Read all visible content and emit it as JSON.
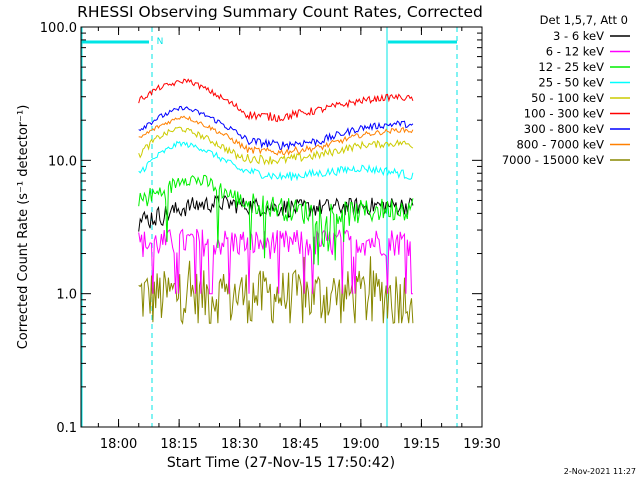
{
  "chart_data": {
    "type": "line",
    "title": "RHESSI Observing Summary Count Rates, Corrected",
    "xlabel": "Start Time (27-Nov-15 17:50:42)",
    "ylabel": "Corrected Count Rate (s⁻¹ detector⁻¹)",
    "y_scale": "log",
    "ylim": [
      0.1,
      100.0
    ],
    "xlim": [
      "17:50:42",
      "19:30:00"
    ],
    "x_ticks": [
      "18:00",
      "18:15",
      "18:30",
      "18:45",
      "19:00",
      "19:15",
      "19:30"
    ],
    "y_ticks": [
      "0.1",
      "1.0",
      "10.0",
      "100.0"
    ],
    "legend_header": "Det 1,5,7, Att 0",
    "legend_placement": "right",
    "data_window": [
      "18:05",
      "19:13"
    ],
    "night_marker": "N",
    "annotation_date": "2-Nov-2021 11:27",
    "series": [
      {
        "name": "3 - 6 keV",
        "color": "#000000",
        "noise": 0.7,
        "profile": [
          [
            "18:05",
            3.5
          ],
          [
            "18:12",
            4.0
          ],
          [
            "18:18",
            4.6
          ],
          [
            "18:25",
            4.8
          ],
          [
            "18:35",
            4.5
          ],
          [
            "18:45",
            4.4
          ],
          [
            "18:55",
            4.5
          ],
          [
            "19:05",
            4.6
          ],
          [
            "19:13",
            4.6
          ]
        ]
      },
      {
        "name": "6 - 12 keV",
        "color": "#ff00ff",
        "noise": 0.6,
        "profile": [
          [
            "18:05",
            2.4
          ],
          [
            "18:20",
            2.5
          ],
          [
            "18:40",
            2.4
          ],
          [
            "19:00",
            2.5
          ],
          [
            "19:13",
            2.5
          ]
        ]
      },
      {
        "name": "12 - 25 keV",
        "color": "#00ee00",
        "noise": 0.9,
        "profile": [
          [
            "18:05",
            5.0
          ],
          [
            "18:12",
            6.0
          ],
          [
            "18:16",
            7.5
          ],
          [
            "18:22",
            6.8
          ],
          [
            "18:30",
            5.0
          ],
          [
            "18:45",
            4.2
          ],
          [
            "18:55",
            4.0
          ],
          [
            "19:05",
            4.3
          ],
          [
            "19:13",
            4.5
          ]
        ]
      },
      {
        "name": "25 - 50 keV",
        "color": "#00ffff",
        "noise": 0.6,
        "profile": [
          [
            "18:05",
            8.0
          ],
          [
            "18:10",
            11.0
          ],
          [
            "18:15",
            13.5
          ],
          [
            "18:20",
            12.5
          ],
          [
            "18:30",
            8.5
          ],
          [
            "18:40",
            7.5
          ],
          [
            "18:50",
            8.0
          ],
          [
            "19:00",
            8.8
          ],
          [
            "19:10",
            8.0
          ],
          [
            "19:13",
            7.5
          ]
        ]
      },
      {
        "name": "50 - 100 keV",
        "color": "#cccc00",
        "noise": 0.8,
        "profile": [
          [
            "18:05",
            11.0
          ],
          [
            "18:10",
            15.0
          ],
          [
            "18:15",
            17.5
          ],
          [
            "18:20",
            15.5
          ],
          [
            "18:30",
            10.5
          ],
          [
            "18:40",
            10.0
          ],
          [
            "18:50",
            11.0
          ],
          [
            "19:00",
            13.0
          ],
          [
            "19:10",
            13.5
          ],
          [
            "19:13",
            13.0
          ]
        ]
      },
      {
        "name": "100 - 300 keV",
        "color": "#ff0000",
        "noise": 1.6,
        "profile": [
          [
            "18:05",
            28.0
          ],
          [
            "18:10",
            35.0
          ],
          [
            "18:17",
            40.0
          ],
          [
            "18:25",
            30.0
          ],
          [
            "18:32",
            22.0
          ],
          [
            "18:40",
            21.0
          ],
          [
            "18:50",
            24.0
          ],
          [
            "19:00",
            28.0
          ],
          [
            "19:08",
            30.0
          ],
          [
            "19:13",
            29.0
          ]
        ]
      },
      {
        "name": "300 - 800 keV",
        "color": "#0000ff",
        "noise": 1.0,
        "profile": [
          [
            "18:05",
            17.0
          ],
          [
            "18:10",
            21.0
          ],
          [
            "18:16",
            25.0
          ],
          [
            "18:22",
            21.5
          ],
          [
            "18:32",
            14.0
          ],
          [
            "18:40",
            13.0
          ],
          [
            "18:50",
            14.0
          ],
          [
            "19:00",
            17.5
          ],
          [
            "19:10",
            19.0
          ],
          [
            "19:13",
            18.0
          ]
        ]
      },
      {
        "name": "800 - 7000 keV",
        "color": "#ff8000",
        "noise": 0.7,
        "profile": [
          [
            "18:05",
            14.5
          ],
          [
            "18:10",
            18.0
          ],
          [
            "18:16",
            21.5
          ],
          [
            "18:22",
            18.0
          ],
          [
            "18:32",
            12.0
          ],
          [
            "18:40",
            11.5
          ],
          [
            "18:50",
            12.5
          ],
          [
            "19:00",
            15.5
          ],
          [
            "19:10",
            17.0
          ],
          [
            "19:13",
            16.5
          ]
        ]
      },
      {
        "name": "7000 - 15000 keV",
        "color": "#888800",
        "noise": 0.5,
        "profile": [
          [
            "18:05",
            1.0
          ],
          [
            "18:20",
            1.0
          ],
          [
            "18:40",
            1.0
          ],
          [
            "19:00",
            1.0
          ],
          [
            "19:13",
            1.0
          ]
        ]
      }
    ]
  }
}
